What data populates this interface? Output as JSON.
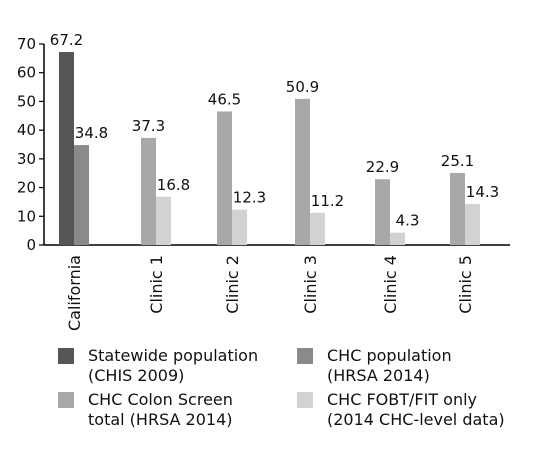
{
  "chart_data": {
    "type": "bar",
    "categories": [
      "California",
      "Clinic 1",
      "Clinic 2",
      "Clinic 3",
      "Clinic 4",
      "Clinic 5"
    ],
    "series": [
      {
        "name": "Statewide population (CHIS 2009)",
        "color": "#555555",
        "values": [
          67.2,
          null,
          null,
          null,
          null,
          null
        ]
      },
      {
        "name": "CHC population (HRSA 2014)",
        "color": "#8a8a8a",
        "values": [
          34.8,
          null,
          null,
          null,
          null,
          null
        ]
      },
      {
        "name": "CHC Colon Screen total (HRSA 2014)",
        "color": "#a8a8a8",
        "values": [
          null,
          37.3,
          46.5,
          50.9,
          22.9,
          25.1
        ]
      },
      {
        "name": "CHC FOBT/FIT only (2014 CHC-level data)",
        "color": "#d2d2d2",
        "values": [
          null,
          16.8,
          12.3,
          11.2,
          4.3,
          14.3
        ]
      }
    ],
    "data_labels": {
      "California": [
        "67.2",
        "34.8"
      ],
      "Clinic 1": [
        "37.3",
        "16.8"
      ],
      "Clinic 2": [
        "46.5",
        "12.3"
      ],
      "Clinic 3": [
        "50.9",
        "11.2"
      ],
      "Clinic 4": [
        "22.9",
        "4.3"
      ],
      "Clinic 5": [
        "25.1",
        "14.3"
      ]
    },
    "y_ticks": [
      "0",
      "10",
      "20",
      "30",
      "40",
      "50",
      "60",
      "70"
    ],
    "ylim": [
      0,
      70
    ],
    "grid": false,
    "legend_position": "bottom",
    "legend": {
      "items": [
        {
          "label": "Statewide population\n(CHIS 2009)",
          "color": "#555555"
        },
        {
          "label": "CHC population\n(HRSA 2014)",
          "color": "#8a8a8a"
        },
        {
          "label": "CHC Colon Screen\ntotal (HRSA 2014)",
          "color": "#a8a8a8"
        },
        {
          "label": "CHC FOBT/FIT only\n(2014 CHC-level data)",
          "color": "#d2d2d2"
        }
      ]
    }
  }
}
